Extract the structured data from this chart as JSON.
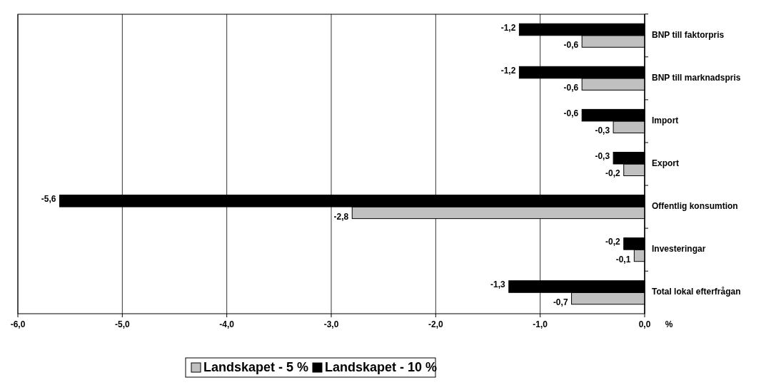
{
  "chart_data": {
    "type": "bar",
    "orientation": "horizontal",
    "categories": [
      "BNP till faktorpris",
      "BNP till marknadspris",
      "Import",
      "Export",
      "Offentlig konsumtion",
      "Investeringar",
      "Total lokal efterfrågan"
    ],
    "series": [
      {
        "name": "Landskapet - 5 %",
        "color": "#c0c0c0",
        "values": [
          -0.6,
          -0.6,
          -0.3,
          -0.2,
          -2.8,
          -0.1,
          -0.7
        ],
        "value_labels": [
          "-0,6",
          "-0,6",
          "-0,3",
          "-0,2",
          "-2,8",
          "-0,1",
          "-0,7"
        ]
      },
      {
        "name": "Landskapet - 10 %",
        "color": "#000000",
        "values": [
          -1.2,
          -1.2,
          -0.6,
          -0.3,
          -5.6,
          -0.2,
          -1.3
        ],
        "value_labels": [
          "-1,2",
          "-1,2",
          "-0,6",
          "-0,3",
          "-5,6",
          "-0,2",
          "-1,3"
        ]
      }
    ],
    "xlim": [
      -6,
      0
    ],
    "xticks": [
      {
        "value": -6,
        "label": "-6,0"
      },
      {
        "value": -5,
        "label": "-5,0"
      },
      {
        "value": -4,
        "label": "-4,0"
      },
      {
        "value": -3,
        "label": "-3,0"
      },
      {
        "value": -2,
        "label": "-2,0"
      },
      {
        "value": -1,
        "label": "-1,0"
      },
      {
        "value": 0,
        "label": "0,0"
      }
    ],
    "xlabel": "%",
    "grid": "x",
    "legend": "bottom"
  }
}
